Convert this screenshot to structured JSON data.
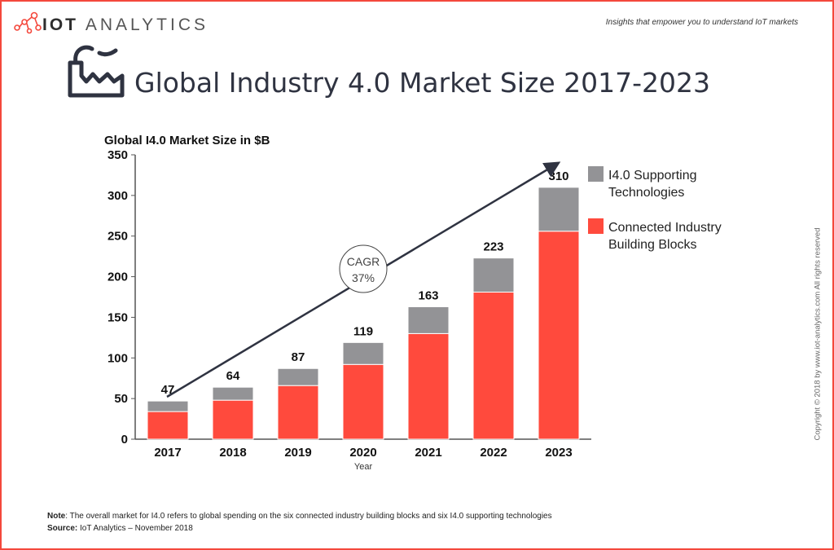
{
  "brand": {
    "bold": "IOT",
    "light": "ANALYTICS",
    "tagline": "Insights that empower you to understand IoT markets"
  },
  "header": {
    "title": "Global Industry 4.0 Market Size 2017-2023",
    "icon": "factory-icon"
  },
  "copyright": "Copyright © 2018 by www.iot-analytics.com All rights reserved",
  "footer": {
    "note_label": "Note",
    "note_text": ": The overall market for I4.0 refers to global spending on the six connected industry building blocks and six I4.0 supporting technologies",
    "source_label": "Source:",
    "source_text": " IoT Analytics – November 2018"
  },
  "chart_data": {
    "type": "bar",
    "stacked": true,
    "title": "Global I4.0 Market Size in $B",
    "xlabel": "Year",
    "ylabel": "",
    "ylim": [
      0,
      350
    ],
    "yticks": [
      0,
      50,
      100,
      150,
      200,
      250,
      300,
      350
    ],
    "categories": [
      "2017",
      "2018",
      "2019",
      "2020",
      "2021",
      "2022",
      "2023"
    ],
    "series": [
      {
        "name": "Connected Industry Building Blocks",
        "color": "#ff4a3d",
        "values": [
          34,
          48,
          66,
          92,
          130,
          181,
          256
        ]
      },
      {
        "name": "I4.0 Supporting Technologies",
        "color": "#939396",
        "values": [
          13,
          16,
          21,
          27,
          33,
          42,
          54
        ]
      }
    ],
    "totals": [
      47,
      64,
      87,
      119,
      163,
      223,
      310
    ],
    "legend_entries": [
      "I4.0 Supporting\nTechnologies",
      "Connected Industry\nBuilding Blocks"
    ],
    "legend_placement": "top-right",
    "annotation": {
      "line1": "CAGR",
      "line2": "37%"
    },
    "grid": false
  }
}
